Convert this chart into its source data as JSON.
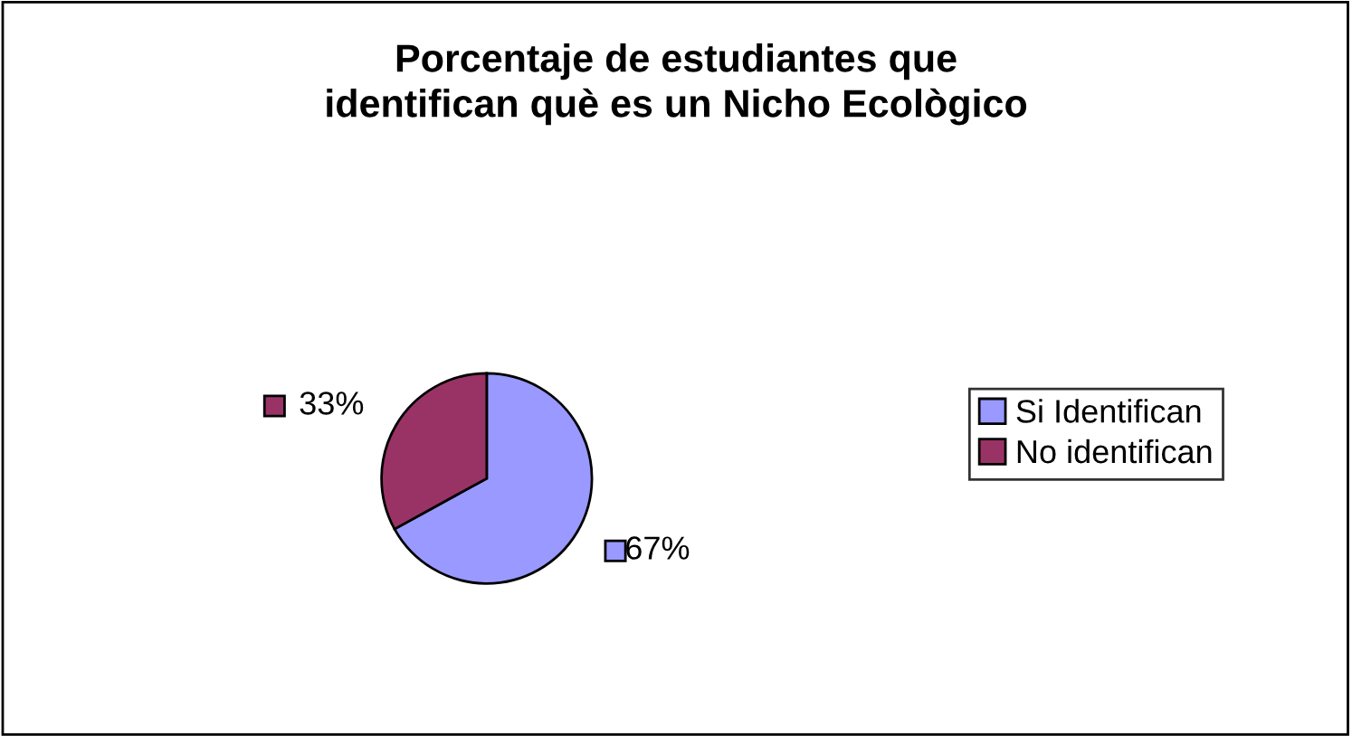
{
  "chart_data": {
    "type": "pie",
    "title": "Porcentaje de estudiantes que\nidentifican què es un Nicho Ecològico",
    "categories": [
      "Si Identifican",
      "No identifican"
    ],
    "values": [
      67,
      33
    ],
    "colors": [
      "#9999ff",
      "#993366"
    ],
    "value_labels": [
      "67%",
      "33%"
    ],
    "legend": "right"
  }
}
